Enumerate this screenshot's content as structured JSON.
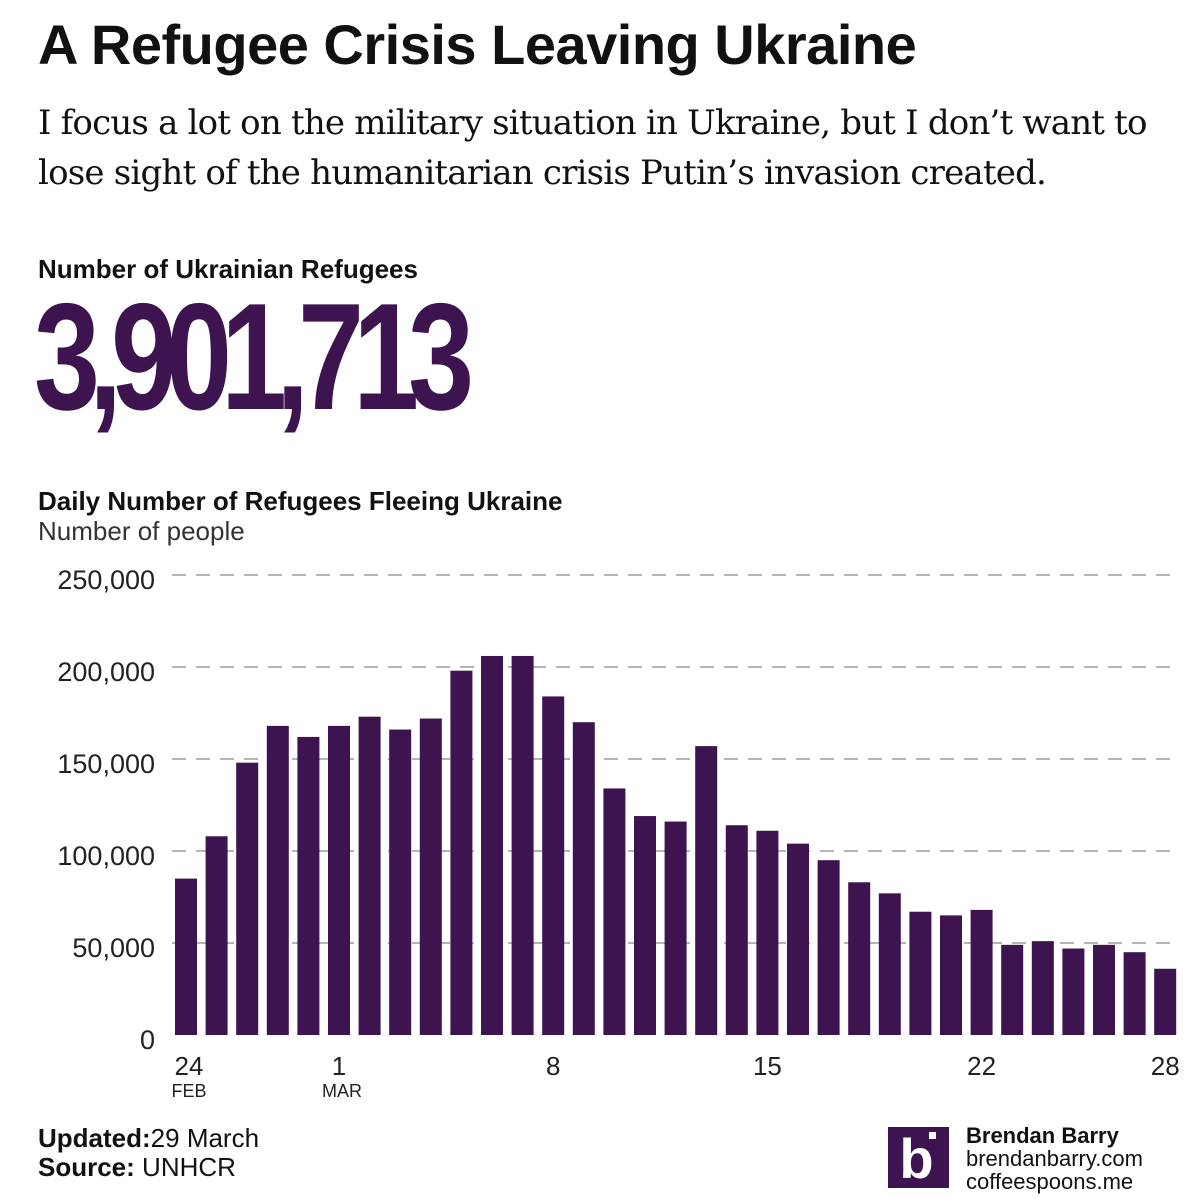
{
  "title": "A Refugee Crisis Leaving Ukraine",
  "subtitle": "I focus a lot on the military situation in Ukraine, but I don’t want to lose sight of the humanitarian crisis Putin’s invasion created.",
  "kpi": {
    "label": "Number of Ukrainian Refugees",
    "value": "3,901,713"
  },
  "footer": {
    "updated_label": "Updated:",
    "updated_value": "29 March",
    "source_label": "Source:",
    "source_value": "UNHCR"
  },
  "brand": {
    "name": "Brendan Barry",
    "site1": "brendanbarry.com",
    "site2": "coffeespoons.me",
    "logo_letter": "b",
    "color": "#3d1350"
  },
  "chart_data": {
    "type": "bar",
    "title": "Daily Number of Refugees Fleeing Ukraine",
    "ylabel": "Number of people",
    "ylim": [
      0,
      250000
    ],
    "yticks": [
      "0",
      "50,000",
      "100,000",
      "150,000",
      "200,000",
      "250,000"
    ],
    "xticks": [
      {
        "index": 0,
        "label": "24",
        "sub": "FEB"
      },
      {
        "index": 5,
        "label": "1",
        "sub": "MAR"
      },
      {
        "index": 12,
        "label": "8",
        "sub": ""
      },
      {
        "index": 19,
        "label": "15",
        "sub": ""
      },
      {
        "index": 26,
        "label": "22",
        "sub": ""
      },
      {
        "index": 32,
        "label": "28",
        "sub": ""
      }
    ],
    "categories": [
      "Feb 24",
      "Feb 25",
      "Feb 26",
      "Feb 27",
      "Feb 28",
      "Mar 1",
      "Mar 2",
      "Mar 3",
      "Mar 4",
      "Mar 5",
      "Mar 6",
      "Mar 7",
      "Mar 8",
      "Mar 9",
      "Mar 10",
      "Mar 11",
      "Mar 12",
      "Mar 13",
      "Mar 14",
      "Mar 15",
      "Mar 16",
      "Mar 17",
      "Mar 18",
      "Mar 19",
      "Mar 20",
      "Mar 21",
      "Mar 22",
      "Mar 23",
      "Mar 24",
      "Mar 25",
      "Mar 26",
      "Mar 27",
      "Mar 28"
    ],
    "values": [
      85000,
      108000,
      148000,
      168000,
      162000,
      168000,
      173000,
      166000,
      172000,
      198000,
      206000,
      206000,
      184000,
      170000,
      134000,
      119000,
      116000,
      157000,
      114000,
      111000,
      104000,
      95000,
      83000,
      77000,
      67000,
      65000,
      68000,
      49000,
      51000,
      47000,
      49000,
      45000,
      36000
    ],
    "grid": true,
    "bar_color": "#3d1350"
  }
}
